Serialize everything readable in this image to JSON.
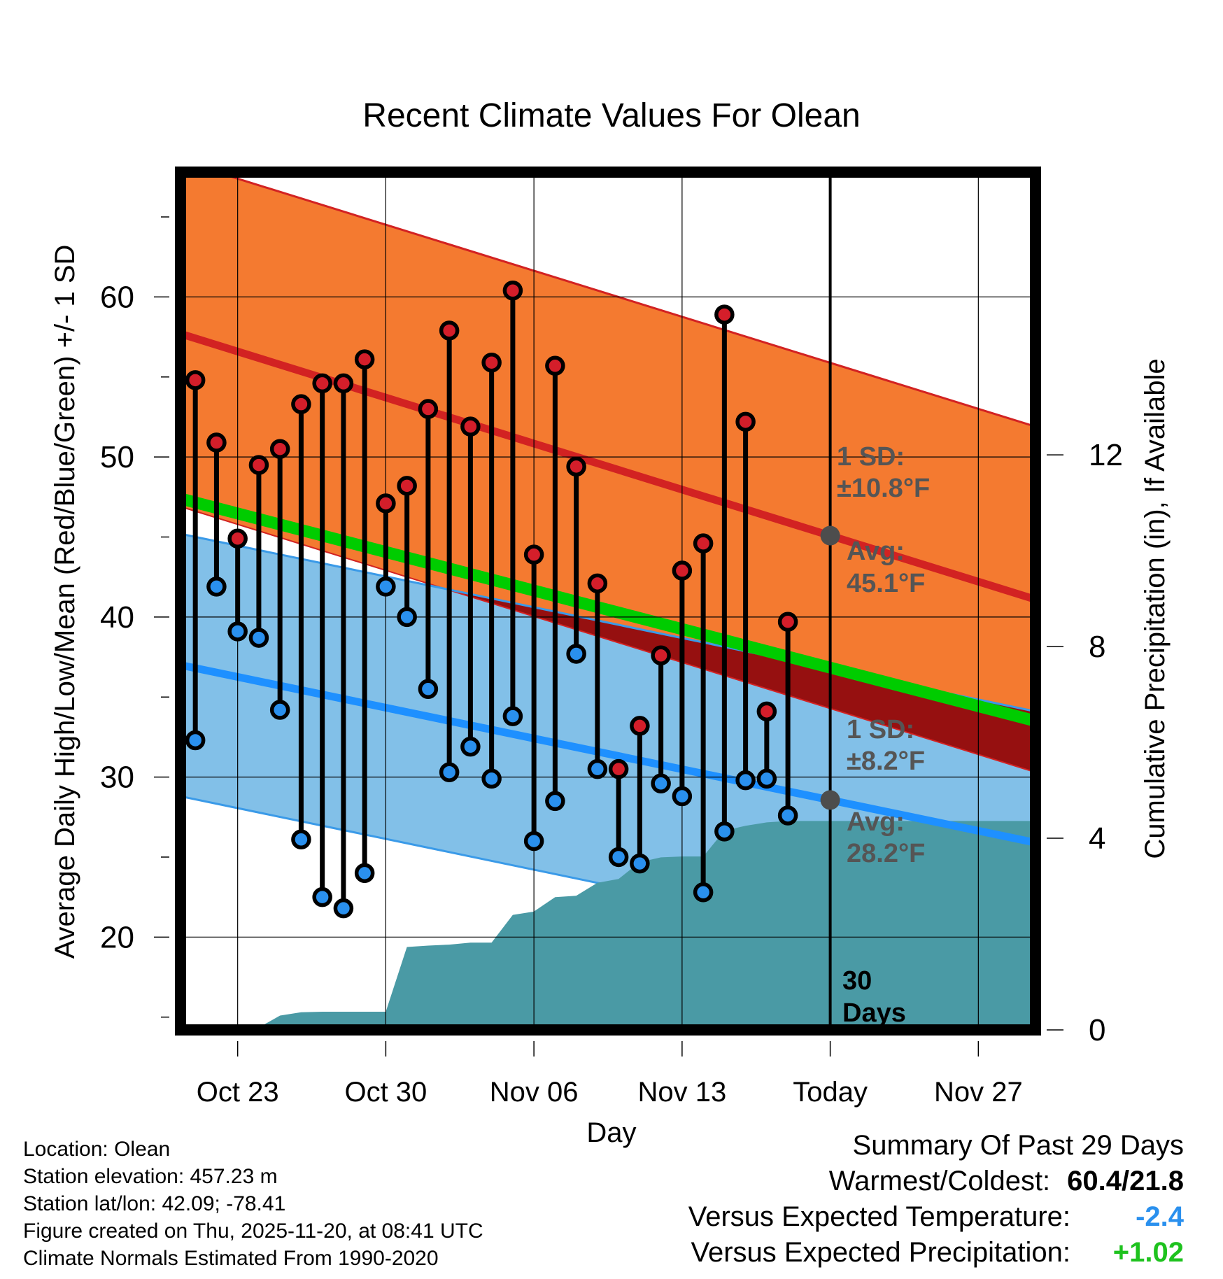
{
  "chart_data": {
    "type": "line",
    "title": "Recent Climate Values For Olean",
    "xlabel": "Day",
    "ylabel": "Average Daily High/Low/Mean (Red/Blue/Green) +/- 1 SD",
    "y2label": "Cumulative Precipitation (in), If Available",
    "ylim": [
      14.2,
      67.8
    ],
    "y2lim": [
      0,
      17.9
    ],
    "yticks": [
      20,
      30,
      40,
      50,
      60
    ],
    "y2ticks": [
      0,
      4,
      8,
      12
    ],
    "xlim": [
      -0.7,
      39.7
    ],
    "xticks": [
      {
        "day": 2,
        "label": "Oct 23"
      },
      {
        "day": 9,
        "label": "Oct 30"
      },
      {
        "day": 16,
        "label": "Nov 06"
      },
      {
        "day": 23,
        "label": "Nov 13"
      },
      {
        "day": 30,
        "label": "Today"
      },
      {
        "day": 37,
        "label": "Nov 27"
      }
    ],
    "today_day": 30,
    "today_label_line1": "30",
    "today_label_line2": "Days",
    "normals": {
      "high_avg": {
        "start": 57.7,
        "end": 41.1
      },
      "high_sd": 10.8,
      "low_avg": {
        "start": 37.0,
        "end": 25.9
      },
      "low_sd": 8.2,
      "mean_avg": {
        "start": 47.4,
        "end": 33.5
      }
    },
    "annotations": {
      "high_sd_label": "1 SD:",
      "high_sd_value": "±10.8°F",
      "high_avg_label": "Avg:",
      "high_avg_value": "45.1°F",
      "low_sd_label": "1 SD:",
      "low_sd_value": "±8.2°F",
      "low_avg_label": "Avg:",
      "low_avg_value": "28.2°F"
    },
    "highs": [
      54.8,
      50.9,
      44.9,
      49.5,
      50.5,
      53.3,
      54.6,
      54.6,
      56.1,
      47.1,
      48.2,
      53.0,
      57.9,
      51.9,
      55.9,
      60.4,
      43.9,
      55.7,
      49.4,
      42.1,
      30.5,
      33.2,
      37.6,
      42.9,
      44.6,
      58.9,
      52.2,
      34.1,
      39.7
    ],
    "lows": [
      32.3,
      41.9,
      39.1,
      38.7,
      34.2,
      26.1,
      22.5,
      21.8,
      24.0,
      41.9,
      40.0,
      35.5,
      30.3,
      31.9,
      29.9,
      33.8,
      26.0,
      28.5,
      37.7,
      30.5,
      25.0,
      24.6,
      29.6,
      28.8,
      22.8,
      26.6,
      29.8,
      29.9,
      27.6
    ],
    "precip_cumulative": [
      0.0,
      0.0,
      0.0,
      0.05,
      0.3,
      0.37,
      0.38,
      0.38,
      0.38,
      0.38,
      1.73,
      1.76,
      1.78,
      1.82,
      1.82,
      2.4,
      2.47,
      2.77,
      2.8,
      3.07,
      3.15,
      3.5,
      3.6,
      3.62,
      3.62,
      4.16,
      4.26,
      4.33,
      4.36,
      4.36,
      4.36,
      4.36,
      4.36,
      4.36,
      4.36,
      4.36,
      4.36,
      4.36,
      4.36,
      4.36
    ],
    "colors": {
      "high_band": "#f47a30",
      "high_line": "#d22222",
      "low_band": "#82c0e8",
      "low_line": "#1e90ff",
      "low_band_edge": "#3a9ae8",
      "mean_line": "#00cc00",
      "overlap": "#961010",
      "precip": "#4a9aa5",
      "high_marker": "#d41e2a",
      "low_marker": "#2a90ee",
      "avg_dot": "#4d4d4d",
      "annotation_text": "#555555"
    }
  },
  "info": {
    "location": "Location: Olean",
    "elevation": "Station elevation: 457.23 m",
    "latlon": "Station lat/lon: 42.09; -78.41",
    "created": "Figure created on Thu, 2025-11-20, at 08:41 UTC",
    "normals_period": "Climate Normals Estimated From 1990-2020"
  },
  "summary": {
    "heading": "Summary Of Past 29 Days",
    "warmest_coldest_label": "Warmest/Coldest:",
    "warmest_coldest_value": "60.4/21.8",
    "temp_label": "Versus Expected Temperature:",
    "temp_value": "-2.4",
    "temp_color": "#2a90ee",
    "precip_label": "Versus Expected Precipitation:",
    "precip_value": "+1.02",
    "precip_color": "#1ec21e"
  }
}
